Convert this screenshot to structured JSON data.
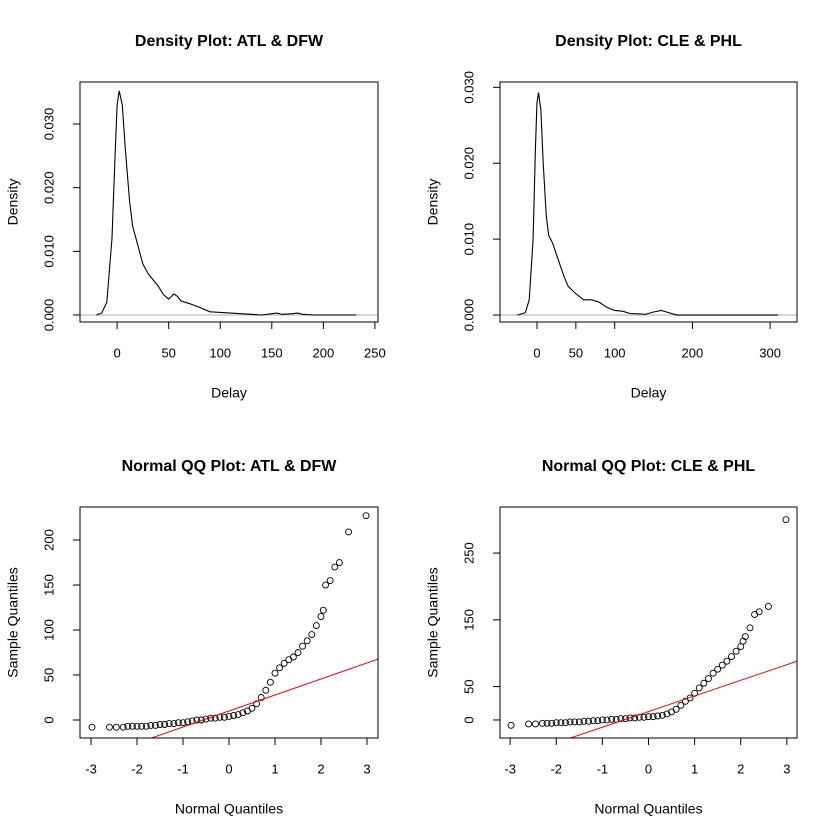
{
  "chart_data": [
    {
      "type": "line",
      "title": "Density Plot: ATL & DFW",
      "x_label": "Delay",
      "y_label": "Density",
      "color": "#000000",
      "x": [
        -20,
        -15,
        -10,
        -5,
        -2,
        0,
        2,
        5,
        8,
        12,
        15,
        20,
        25,
        30,
        35,
        40,
        45,
        50,
        55,
        58,
        62,
        70,
        80,
        90,
        100,
        110,
        120,
        130,
        140,
        150,
        155,
        160,
        170,
        175,
        180,
        190,
        200,
        232
      ],
      "values": [
        0,
        0.0003,
        0.002,
        0.012,
        0.025,
        0.033,
        0.0352,
        0.033,
        0.026,
        0.018,
        0.014,
        0.011,
        0.008,
        0.0065,
        0.0055,
        0.0045,
        0.0032,
        0.0025,
        0.0033,
        0.003,
        0.0022,
        0.0018,
        0.0012,
        0.0005,
        0.0004,
        0.0003,
        0.0002,
        0.0001,
        0,
        0.0002,
        0.0003,
        0.0001,
        0.0002,
        0.0003,
        0.0001,
        0,
        0,
        0
      ],
      "hline": 0,
      "hline_color": "#bebebe",
      "xlim": [
        -36,
        253
      ],
      "xticks": [
        0,
        50,
        100,
        150,
        200,
        250
      ],
      "ylim": [
        -0.0011,
        0.0366
      ],
      "yticks": [
        {
          "value": 0,
          "label": "0.000"
        },
        {
          "value": 0.01,
          "label": "0.010"
        },
        {
          "value": 0.02,
          "label": "0.020"
        },
        {
          "value": 0.03,
          "label": "0.030"
        }
      ]
    },
    {
      "type": "line",
      "title": "Density Plot: CLE & PHL",
      "x_label": "Delay",
      "y_label": "Density",
      "color": "#000000",
      "x": [
        -25,
        -15,
        -10,
        -5,
        -2,
        0,
        2,
        5,
        8,
        12,
        15,
        20,
        25,
        30,
        35,
        40,
        50,
        60,
        70,
        80,
        90,
        100,
        110,
        120,
        140,
        150,
        160,
        170,
        180,
        310
      ],
      "values": [
        0,
        0.0003,
        0.002,
        0.01,
        0.022,
        0.028,
        0.0293,
        0.027,
        0.02,
        0.013,
        0.0105,
        0.0095,
        0.008,
        0.0065,
        0.005,
        0.0038,
        0.0028,
        0.002,
        0.002,
        0.0017,
        0.001,
        0.0006,
        0.0005,
        0.0002,
        0.0001,
        0.0004,
        0.0006,
        0.0003,
        0,
        0
      ],
      "hline": 0,
      "hline_color": "#bebebe",
      "xlim": [
        -47.6,
        334.6
      ],
      "xticks": [
        0,
        50,
        100,
        200,
        300
      ],
      "ylim": [
        -0.00092,
        0.0307
      ],
      "yticks": [
        {
          "value": 0,
          "label": "0.000"
        },
        {
          "value": 0.01,
          "label": "0.010"
        },
        {
          "value": 0.02,
          "label": "0.020"
        },
        {
          "value": 0.03,
          "label": "0.030"
        }
      ]
    },
    {
      "type": "scatter",
      "title": "Normal QQ Plot: ATL & DFW",
      "x_label": "Normal Quantiles",
      "y_label": "Sample Quantiles",
      "color": "#000000",
      "x": [
        -2.98,
        -2.6,
        -2.45,
        -2.3,
        -2.2,
        -2.1,
        -2.0,
        -1.9,
        -1.8,
        -1.7,
        -1.6,
        -1.5,
        -1.4,
        -1.3,
        -1.2,
        -1.1,
        -1.0,
        -0.9,
        -0.8,
        -0.7,
        -0.6,
        -0.5,
        -0.4,
        -0.3,
        -0.2,
        -0.1,
        0,
        0.1,
        0.2,
        0.3,
        0.4,
        0.5,
        0.6,
        0.7,
        0.8,
        0.9,
        1.0,
        1.1,
        1.2,
        1.3,
        1.4,
        1.5,
        1.6,
        1.7,
        1.8,
        1.9,
        2.0,
        2.05,
        2.1,
        2.2,
        2.3,
        2.4,
        2.6,
        2.98
      ],
      "values": [
        -8,
        -8,
        -8,
        -8,
        -7,
        -7,
        -7,
        -7,
        -7,
        -6,
        -6,
        -5,
        -5,
        -4,
        -4,
        -3,
        -3,
        -2,
        -1,
        0,
        0,
        1,
        2,
        2,
        3,
        3,
        4,
        5,
        6,
        8,
        10,
        13,
        18,
        25,
        33,
        42,
        52,
        58,
        63,
        67,
        70,
        75,
        82,
        88,
        95,
        105,
        115,
        122,
        150,
        155,
        170,
        175,
        209,
        227
      ],
      "reference_line": {
        "intercept": 10,
        "slope": 17.8,
        "color": "#ff0000"
      },
      "xlim": [
        -3.24,
        3.24
      ],
      "xticks": [
        -3,
        -2,
        -1,
        0,
        1,
        2,
        3
      ],
      "ylim": [
        -20,
        236.7
      ],
      "yticks": [
        0,
        50,
        100,
        150,
        200
      ]
    },
    {
      "type": "scatter",
      "title": "Normal QQ Plot: CLE & PHL",
      "x_label": "Normal Quantiles",
      "y_label": "Sample Quantiles",
      "color": "#000000",
      "x": [
        -2.98,
        -2.6,
        -2.45,
        -2.3,
        -2.2,
        -2.1,
        -2.0,
        -1.9,
        -1.8,
        -1.7,
        -1.6,
        -1.5,
        -1.4,
        -1.3,
        -1.2,
        -1.1,
        -1.0,
        -0.9,
        -0.8,
        -0.7,
        -0.6,
        -0.5,
        -0.4,
        -0.3,
        -0.2,
        -0.1,
        0,
        0.1,
        0.2,
        0.3,
        0.4,
        0.5,
        0.6,
        0.7,
        0.8,
        0.9,
        1.0,
        1.1,
        1.2,
        1.3,
        1.4,
        1.5,
        1.6,
        1.7,
        1.8,
        1.9,
        2.0,
        2.05,
        2.1,
        2.2,
        2.3,
        2.4,
        2.6,
        2.98
      ],
      "values": [
        -8,
        -6,
        -6,
        -5,
        -5,
        -5,
        -4,
        -4,
        -4,
        -3,
        -3,
        -3,
        -2,
        -2,
        -1,
        -1,
        0,
        0,
        1,
        1,
        2,
        2,
        3,
        3,
        4,
        4,
        5,
        5,
        6,
        7,
        9,
        12,
        16,
        22,
        28,
        33,
        40,
        48,
        55,
        62,
        70,
        76,
        82,
        88,
        95,
        103,
        110,
        118,
        125,
        138,
        158,
        162,
        170,
        300
      ],
      "reference_line": {
        "intercept": 12.6,
        "slope": 23.4,
        "color": "#ff0000"
      },
      "xlim": [
        -3.22,
        3.22
      ],
      "xticks": [
        -3,
        -2,
        -1,
        0,
        1,
        2,
        3
      ],
      "ylim": [
        -27,
        319
      ],
      "yticks": [
        0,
        50,
        150,
        250
      ]
    }
  ]
}
